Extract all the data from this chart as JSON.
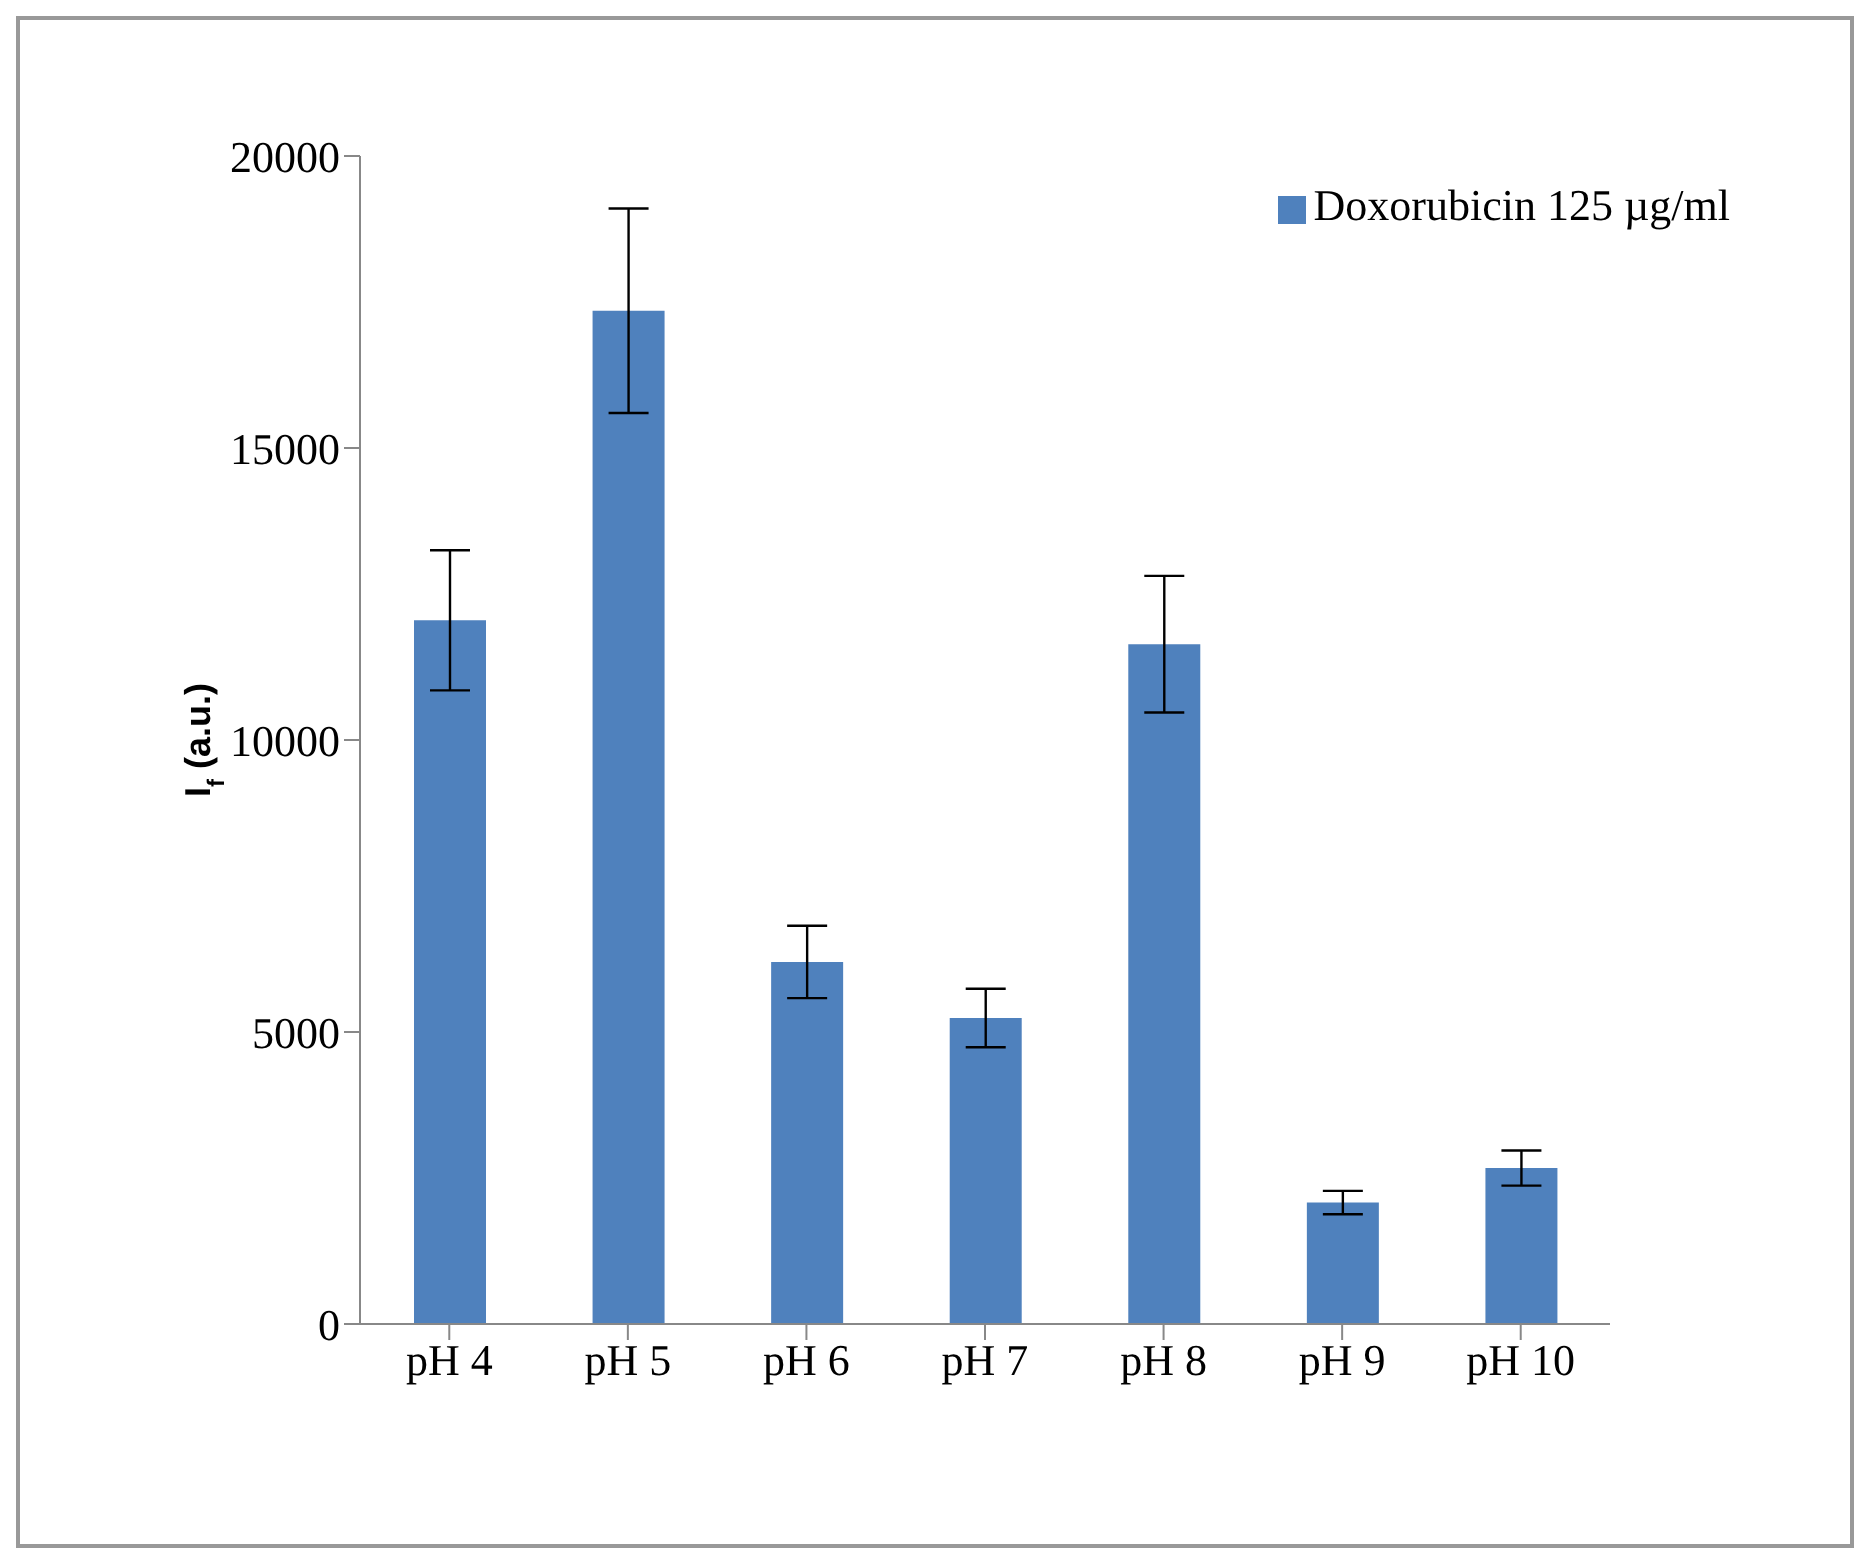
{
  "chart_data": {
    "type": "bar",
    "ylabel": "I$_{f}$ (a.u.)",
    "categories": [
      "pH 4",
      "pH 5",
      "pH 6",
      "pH 7",
      "pH 8",
      "pH 9",
      "pH 10"
    ],
    "series": [
      {
        "name": "Doxorubicin 125 µg/ml",
        "color": "#4f81bd",
        "values": [
          12050,
          17350,
          6200,
          5240,
          11640,
          2080,
          2670
        ],
        "errors": [
          1200,
          1750,
          620,
          500,
          1170,
          200,
          300
        ]
      }
    ],
    "ylim": [
      0,
      20000
    ],
    "yticks": [
      0,
      5000,
      10000,
      15000,
      20000
    ],
    "legend": "top right"
  }
}
